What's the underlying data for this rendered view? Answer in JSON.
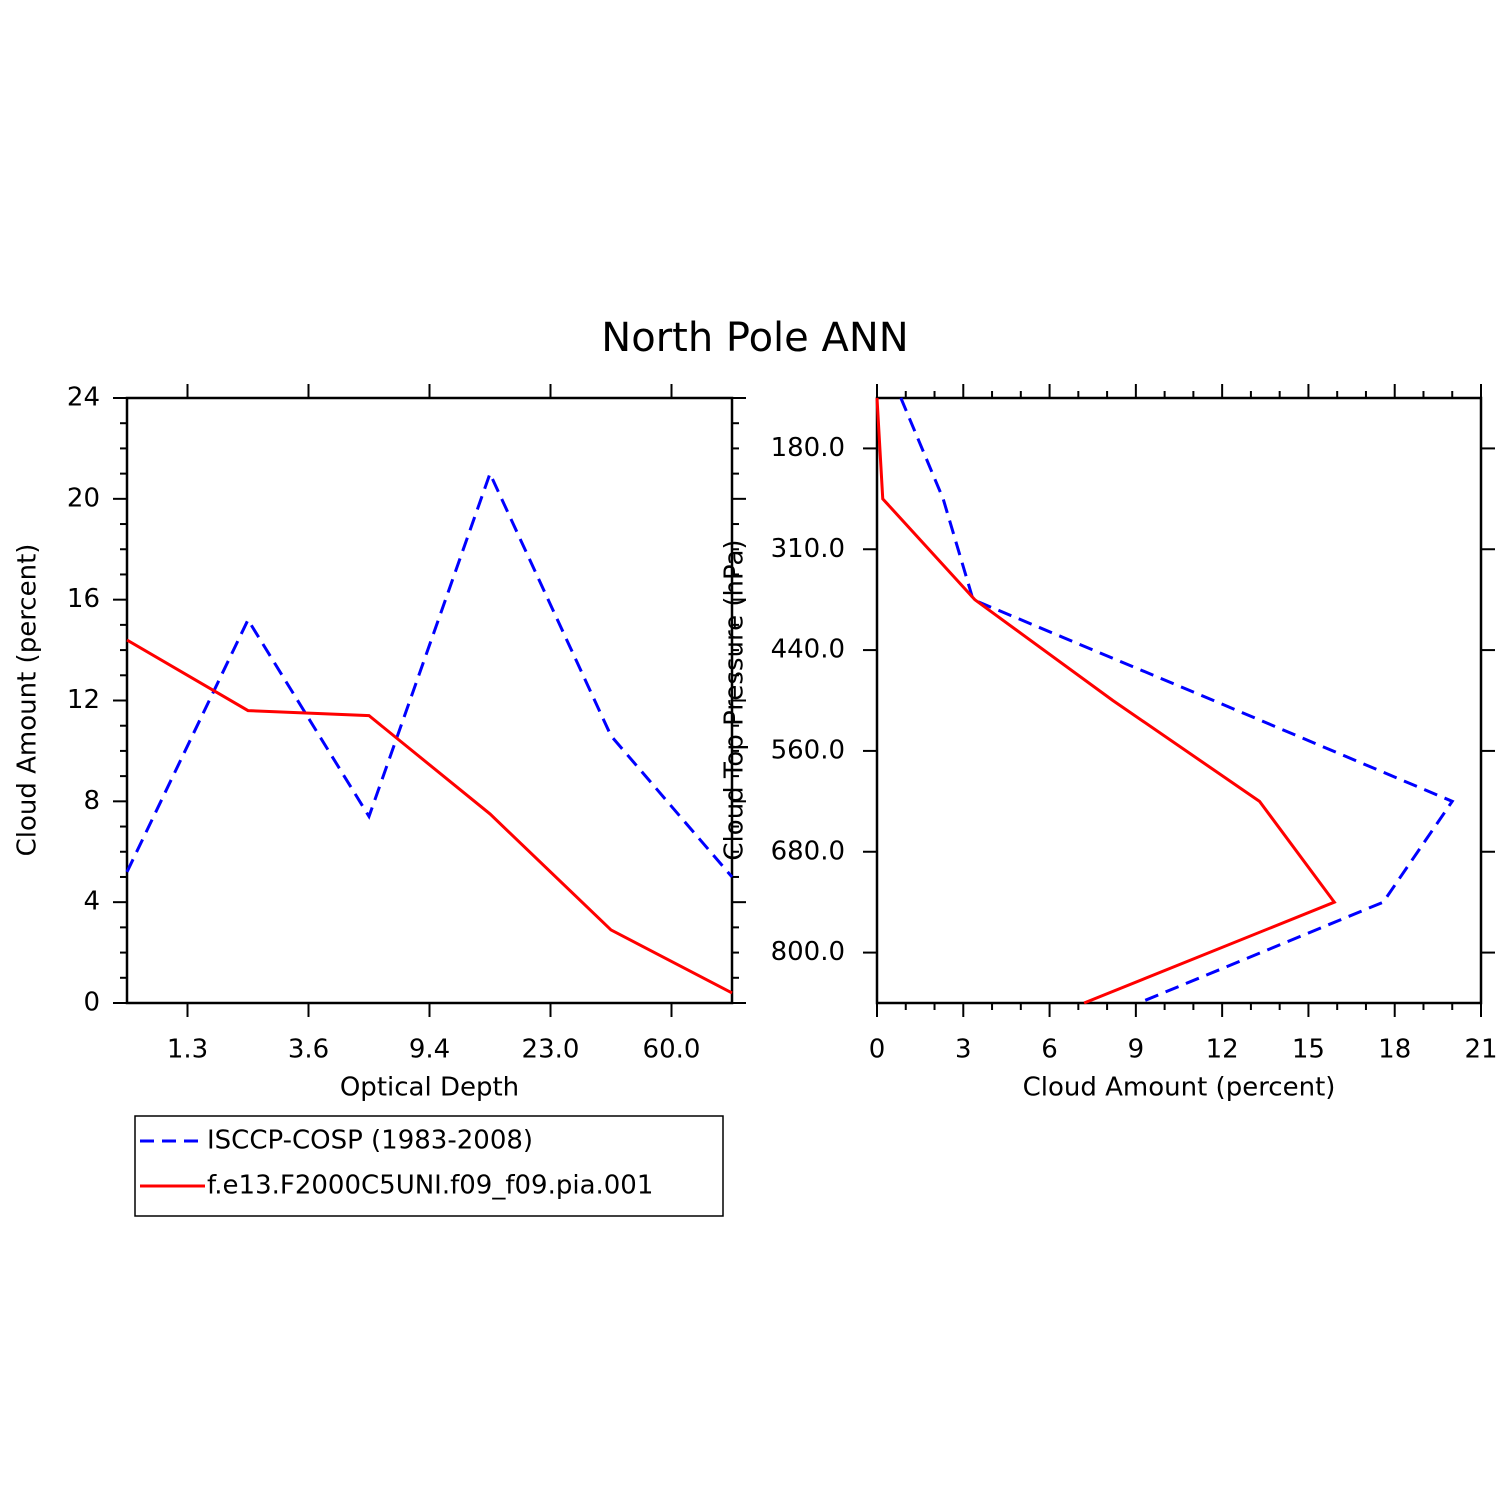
{
  "title": "North Pole ANN",
  "chart_data": [
    {
      "type": "line",
      "orientation": "vertical",
      "xlabel": "Optical Depth",
      "ylabel": "Cloud Amount (percent)",
      "categories": [
        null,
        null,
        null,
        null,
        null,
        null
      ],
      "xticks": [
        "1.3",
        "3.6",
        "9.4",
        "23.0",
        "60.0"
      ],
      "ylim": [
        0,
        24
      ],
      "yticks": [
        0,
        4,
        8,
        12,
        16,
        20,
        24
      ],
      "series": [
        {
          "name": "ISCCP-COSP (1983-2008)",
          "color": "#0000ff",
          "dash": true,
          "values": [
            5.2,
            15.2,
            7.4,
            21.0,
            10.6,
            5.0
          ]
        },
        {
          "name": "f.e13.F2000C5UNI.f09_f09.pia.001",
          "color": "#ff0000",
          "dash": false,
          "values": [
            14.4,
            11.6,
            11.4,
            7.5,
            2.9,
            0.4
          ]
        }
      ]
    },
    {
      "type": "line",
      "orientation": "horizontal",
      "xlabel": "Cloud Amount (percent)",
      "ylabel": "Cloud Top Pressure (hPa)",
      "categories": [
        null,
        null,
        null,
        null,
        null,
        null,
        null
      ],
      "yticks": [
        "180.0",
        "310.0",
        "440.0",
        "560.0",
        "680.0",
        "800.0"
      ],
      "xlim": [
        0,
        21
      ],
      "xticks": [
        0,
        3,
        6,
        9,
        12,
        15,
        18,
        21
      ],
      "series": [
        {
          "color": "#0000ff",
          "dash": true,
          "values": [
            0.83,
            2.3,
            3.34,
            11.7,
            20.0,
            17.6,
            9.1
          ]
        },
        {
          "color": "#ff0000",
          "dash": false,
          "values": [
            0.0,
            0.2,
            3.4,
            8.2,
            13.3,
            15.9,
            7.2
          ]
        }
      ]
    }
  ]
}
